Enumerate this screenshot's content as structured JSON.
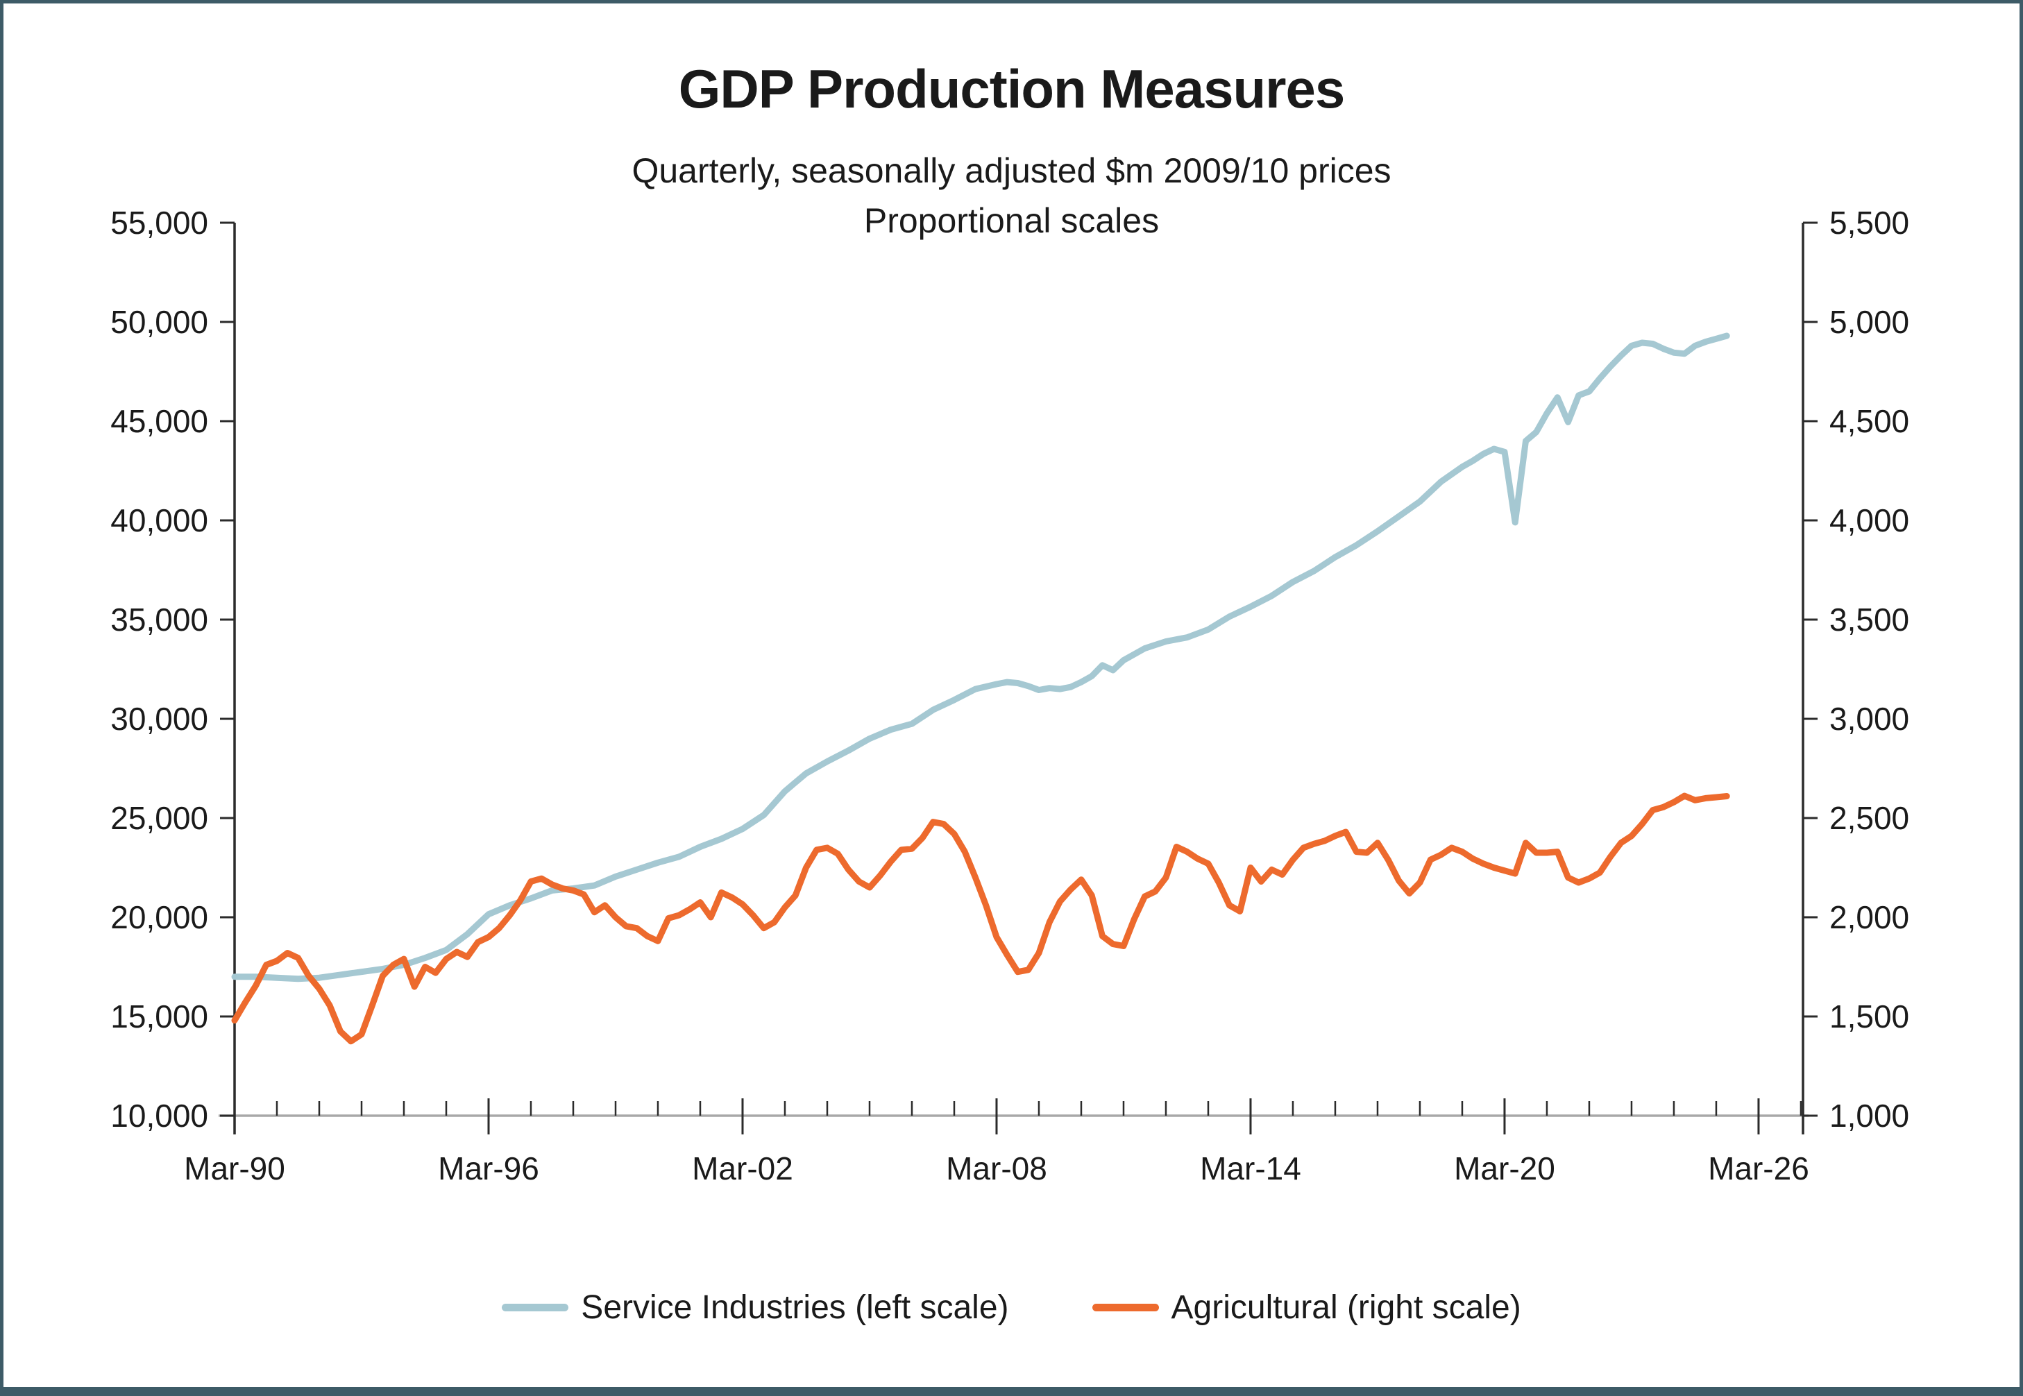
{
  "header": {
    "title": "GDP Production Measures",
    "subtitle1": "Quarterly, seasonally adjusted $m 2009/10 prices",
    "subtitle2": "Proportional scales"
  },
  "legend": [
    {
      "label": "Service Industries (left scale)",
      "color": "#a5c8d2"
    },
    {
      "label": "Agricultural (right scale)",
      "color": "#ed6a2d"
    }
  ],
  "colors": {
    "service_line": "#a5c8d2",
    "agricultural_line": "#ed6a2d",
    "x_axis_line": "#a8a8a8",
    "y_axis_line": "#2b2b2b",
    "tick": "#2b2b2b",
    "text": "#1a1a1a",
    "frame_border": "#3d5b67"
  },
  "chart_data": {
    "type": "line",
    "title": "GDP Production Measures",
    "subtitle": "Quarterly, seasonally adjusted $m 2009/10 prices — Proportional scales",
    "grid": false,
    "legend_position": "bottom",
    "x_axis": {
      "tick_labels": [
        "Mar-90",
        "Mar-96",
        "Mar-02",
        "Mar-08",
        "Mar-14",
        "Mar-20",
        "Mar-26"
      ],
      "tick_years": [
        1990,
        1996,
        2002,
        2008,
        2014,
        2020,
        2026
      ],
      "minor_tick_every_years": 1,
      "range_years": [
        1990,
        2027.05
      ]
    },
    "y_axis_left": {
      "series": "Service Industries",
      "min": 10000,
      "max": 55000,
      "step": 5000,
      "tick_values": [
        10000,
        15000,
        20000,
        25000,
        30000,
        35000,
        40000,
        45000,
        50000,
        55000
      ],
      "tick_labels": [
        "10,000",
        "15,000",
        "20,000",
        "25,000",
        "30,000",
        "35,000",
        "40,000",
        "45,000",
        "50,000",
        "55,000"
      ]
    },
    "y_axis_right": {
      "series": "Agricultural",
      "min": 1000,
      "max": 5500,
      "step": 500,
      "tick_values": [
        1000,
        1500,
        2000,
        2500,
        3000,
        3500,
        4000,
        4500,
        5000,
        5500
      ],
      "tick_labels": [
        "1,000",
        "1,500",
        "2,000",
        "2,500",
        "3,000",
        "3,500",
        "4,000",
        "4,500",
        "5,000",
        "5,500"
      ]
    },
    "series": [
      {
        "name": "Service Industries (left scale)",
        "axis": "left",
        "color": "#a5c8d2",
        "points": [
          [
            1990.0,
            17000
          ],
          [
            1990.5,
            17000
          ],
          [
            1991.0,
            16950
          ],
          [
            1991.5,
            16900
          ],
          [
            1992.0,
            16950
          ],
          [
            1992.5,
            17100
          ],
          [
            1993.0,
            17250
          ],
          [
            1993.5,
            17400
          ],
          [
            1994.0,
            17600
          ],
          [
            1994.5,
            17950
          ],
          [
            1995.0,
            18350
          ],
          [
            1995.5,
            19150
          ],
          [
            1996.0,
            20150
          ],
          [
            1996.5,
            20600
          ],
          [
            1997.0,
            20950
          ],
          [
            1997.5,
            21350
          ],
          [
            1998.0,
            21450
          ],
          [
            1998.5,
            21600
          ],
          [
            1999.0,
            22050
          ],
          [
            1999.5,
            22400
          ],
          [
            2000.0,
            22750
          ],
          [
            2000.5,
            23050
          ],
          [
            2001.0,
            23550
          ],
          [
            2001.5,
            23950
          ],
          [
            2002.0,
            24450
          ],
          [
            2002.5,
            25150
          ],
          [
            2003.0,
            26350
          ],
          [
            2003.5,
            27250
          ],
          [
            2004.0,
            27850
          ],
          [
            2004.5,
            28400
          ],
          [
            2005.0,
            29000
          ],
          [
            2005.5,
            29450
          ],
          [
            2006.0,
            29750
          ],
          [
            2006.5,
            30450
          ],
          [
            2007.0,
            30950
          ],
          [
            2007.5,
            31500
          ],
          [
            2008.0,
            31750
          ],
          [
            2008.25,
            31850
          ],
          [
            2008.5,
            31800
          ],
          [
            2008.75,
            31650
          ],
          [
            2009.0,
            31450
          ],
          [
            2009.25,
            31550
          ],
          [
            2009.5,
            31500
          ],
          [
            2009.75,
            31600
          ],
          [
            2010.0,
            31850
          ],
          [
            2010.25,
            32150
          ],
          [
            2010.5,
            32700
          ],
          [
            2010.75,
            32450
          ],
          [
            2011.0,
            32950
          ],
          [
            2011.5,
            33550
          ],
          [
            2012.0,
            33900
          ],
          [
            2012.5,
            34100
          ],
          [
            2013.0,
            34500
          ],
          [
            2013.5,
            35150
          ],
          [
            2014.0,
            35650
          ],
          [
            2014.5,
            36200
          ],
          [
            2015.0,
            36900
          ],
          [
            2015.5,
            37450
          ],
          [
            2016.0,
            38150
          ],
          [
            2016.5,
            38750
          ],
          [
            2017.0,
            39450
          ],
          [
            2017.5,
            40200
          ],
          [
            2018.0,
            40950
          ],
          [
            2018.5,
            41950
          ],
          [
            2019.0,
            42700
          ],
          [
            2019.25,
            43000
          ],
          [
            2019.5,
            43350
          ],
          [
            2019.75,
            43600
          ],
          [
            2020.0,
            43450
          ],
          [
            2020.25,
            39900
          ],
          [
            2020.5,
            44000
          ],
          [
            2020.75,
            44450
          ],
          [
            2021.0,
            45400
          ],
          [
            2021.25,
            46200
          ],
          [
            2021.5,
            44950
          ],
          [
            2021.75,
            46300
          ],
          [
            2022.0,
            46500
          ],
          [
            2022.25,
            47150
          ],
          [
            2022.5,
            47750
          ],
          [
            2022.75,
            48300
          ],
          [
            2023.0,
            48800
          ],
          [
            2023.25,
            48950
          ],
          [
            2023.5,
            48900
          ],
          [
            2023.75,
            48650
          ],
          [
            2024.0,
            48450
          ],
          [
            2024.25,
            48400
          ],
          [
            2024.5,
            48800
          ],
          [
            2024.75,
            49000
          ],
          [
            2025.0,
            49150
          ],
          [
            2025.25,
            49300
          ]
        ]
      },
      {
        "name": "Agricultural (right scale)",
        "axis": "right",
        "color": "#ed6a2d",
        "points": [
          [
            1990.0,
            1480
          ],
          [
            1990.25,
            1570
          ],
          [
            1990.5,
            1655
          ],
          [
            1990.75,
            1760
          ],
          [
            1991.0,
            1780
          ],
          [
            1991.25,
            1820
          ],
          [
            1991.5,
            1795
          ],
          [
            1991.75,
            1705
          ],
          [
            1992.0,
            1640
          ],
          [
            1992.25,
            1555
          ],
          [
            1992.5,
            1425
          ],
          [
            1992.75,
            1375
          ],
          [
            1993.0,
            1410
          ],
          [
            1993.25,
            1555
          ],
          [
            1993.5,
            1705
          ],
          [
            1993.75,
            1760
          ],
          [
            1994.0,
            1790
          ],
          [
            1994.25,
            1650
          ],
          [
            1994.5,
            1750
          ],
          [
            1994.75,
            1720
          ],
          [
            1995.0,
            1790
          ],
          [
            1995.25,
            1825
          ],
          [
            1995.5,
            1800
          ],
          [
            1995.75,
            1875
          ],
          [
            1996.0,
            1900
          ],
          [
            1996.25,
            1945
          ],
          [
            1996.5,
            2010
          ],
          [
            1996.75,
            2085
          ],
          [
            1997.0,
            2180
          ],
          [
            1997.25,
            2195
          ],
          [
            1997.5,
            2165
          ],
          [
            1997.75,
            2145
          ],
          [
            1998.0,
            2135
          ],
          [
            1998.25,
            2115
          ],
          [
            1998.5,
            2025
          ],
          [
            1998.75,
            2060
          ],
          [
            1999.0,
            2000
          ],
          [
            1999.25,
            1955
          ],
          [
            1999.5,
            1945
          ],
          [
            1999.75,
            1905
          ],
          [
            2000.0,
            1880
          ],
          [
            2000.25,
            1995
          ],
          [
            2000.5,
            2010
          ],
          [
            2000.75,
            2040
          ],
          [
            2001.0,
            2075
          ],
          [
            2001.25,
            2000
          ],
          [
            2001.5,
            2125
          ],
          [
            2001.75,
            2100
          ],
          [
            2002.0,
            2065
          ],
          [
            2002.25,
            2010
          ],
          [
            2002.5,
            1945
          ],
          [
            2002.75,
            1975
          ],
          [
            2003.0,
            2050
          ],
          [
            2003.25,
            2110
          ],
          [
            2003.5,
            2250
          ],
          [
            2003.75,
            2340
          ],
          [
            2004.0,
            2350
          ],
          [
            2004.25,
            2320
          ],
          [
            2004.5,
            2240
          ],
          [
            2004.75,
            2180
          ],
          [
            2005.0,
            2150
          ],
          [
            2005.25,
            2210
          ],
          [
            2005.5,
            2280
          ],
          [
            2005.75,
            2340
          ],
          [
            2006.0,
            2345
          ],
          [
            2006.25,
            2400
          ],
          [
            2006.5,
            2480
          ],
          [
            2006.75,
            2470
          ],
          [
            2007.0,
            2420
          ],
          [
            2007.25,
            2330
          ],
          [
            2007.5,
            2200
          ],
          [
            2007.75,
            2060
          ],
          [
            2008.0,
            1900
          ],
          [
            2008.25,
            1810
          ],
          [
            2008.5,
            1725
          ],
          [
            2008.75,
            1735
          ],
          [
            2009.0,
            1820
          ],
          [
            2009.25,
            1975
          ],
          [
            2009.5,
            2080
          ],
          [
            2009.75,
            2140
          ],
          [
            2010.0,
            2190
          ],
          [
            2010.25,
            2110
          ],
          [
            2010.5,
            1905
          ],
          [
            2010.75,
            1865
          ],
          [
            2011.0,
            1855
          ],
          [
            2011.25,
            1990
          ],
          [
            2011.5,
            2105
          ],
          [
            2011.75,
            2130
          ],
          [
            2012.0,
            2200
          ],
          [
            2012.25,
            2355
          ],
          [
            2012.5,
            2330
          ],
          [
            2012.75,
            2295
          ],
          [
            2013.0,
            2270
          ],
          [
            2013.25,
            2175
          ],
          [
            2013.5,
            2060
          ],
          [
            2013.75,
            2030
          ],
          [
            2014.0,
            2250
          ],
          [
            2014.25,
            2180
          ],
          [
            2014.5,
            2240
          ],
          [
            2014.75,
            2215
          ],
          [
            2015.0,
            2290
          ],
          [
            2015.25,
            2350
          ],
          [
            2015.5,
            2370
          ],
          [
            2015.75,
            2385
          ],
          [
            2016.0,
            2410
          ],
          [
            2016.25,
            2430
          ],
          [
            2016.5,
            2330
          ],
          [
            2016.75,
            2325
          ],
          [
            2017.0,
            2375
          ],
          [
            2017.25,
            2290
          ],
          [
            2017.5,
            2185
          ],
          [
            2017.75,
            2120
          ],
          [
            2018.0,
            2175
          ],
          [
            2018.25,
            2290
          ],
          [
            2018.5,
            2315
          ],
          [
            2018.75,
            2350
          ],
          [
            2019.0,
            2330
          ],
          [
            2019.25,
            2295
          ],
          [
            2019.5,
            2270
          ],
          [
            2019.75,
            2250
          ],
          [
            2020.0,
            2235
          ],
          [
            2020.25,
            2220
          ],
          [
            2020.5,
            2375
          ],
          [
            2020.75,
            2325
          ],
          [
            2021.0,
            2325
          ],
          [
            2021.25,
            2330
          ],
          [
            2021.5,
            2200
          ],
          [
            2021.75,
            2175
          ],
          [
            2022.0,
            2195
          ],
          [
            2022.25,
            2225
          ],
          [
            2022.5,
            2305
          ],
          [
            2022.75,
            2375
          ],
          [
            2023.0,
            2410
          ],
          [
            2023.25,
            2470
          ],
          [
            2023.5,
            2540
          ],
          [
            2023.75,
            2555
          ],
          [
            2024.0,
            2580
          ],
          [
            2024.25,
            2612
          ],
          [
            2024.5,
            2590
          ],
          [
            2024.75,
            2600
          ],
          [
            2025.0,
            2605
          ],
          [
            2025.25,
            2610
          ]
        ]
      }
    ]
  }
}
